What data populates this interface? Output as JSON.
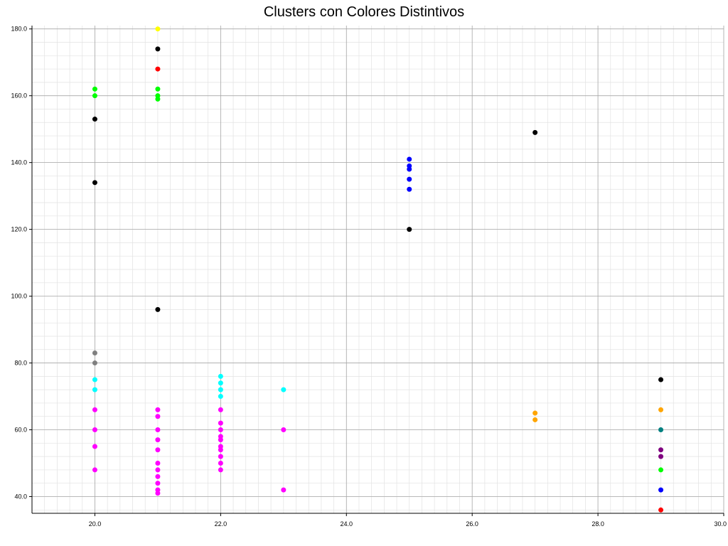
{
  "chart_data": {
    "type": "scatter",
    "title": "Clusters con Colores Distintivos",
    "xlabel": "",
    "ylabel": "",
    "xlim": [
      19.0,
      30.0
    ],
    "ylim": [
      35.0,
      181.0
    ],
    "x_ticks": [
      20.0,
      22.0,
      24.0,
      26.0,
      28.0,
      30.0
    ],
    "y_ticks": [
      40.0,
      60.0,
      80.0,
      100.0,
      120.0,
      140.0,
      160.0,
      180.0
    ],
    "x_tick_labels": [
      "20.0",
      "22.0",
      "24.0",
      "26.0",
      "28.0",
      "30.0"
    ],
    "y_tick_labels": [
      "40.0",
      "60.0",
      "80.0",
      "100.0",
      "120.0",
      "140.0",
      "160.0",
      "180.0"
    ],
    "grid": true,
    "points": [
      {
        "x": 20,
        "y": 162,
        "color": "#00ff00"
      },
      {
        "x": 20,
        "y": 160,
        "color": "#00ff00"
      },
      {
        "x": 20,
        "y": 153,
        "color": "#000000"
      },
      {
        "x": 20,
        "y": 134,
        "color": "#000000"
      },
      {
        "x": 20,
        "y": 83,
        "color": "#808080"
      },
      {
        "x": 20,
        "y": 80,
        "color": "#808080"
      },
      {
        "x": 20,
        "y": 75,
        "color": "#00ffff"
      },
      {
        "x": 20,
        "y": 72,
        "color": "#00ffff"
      },
      {
        "x": 20,
        "y": 66,
        "color": "#ff00ff"
      },
      {
        "x": 20,
        "y": 60,
        "color": "#ff00ff"
      },
      {
        "x": 20,
        "y": 55,
        "color": "#ff00ff"
      },
      {
        "x": 20,
        "y": 48,
        "color": "#ff00ff"
      },
      {
        "x": 21,
        "y": 180,
        "color": "#ffff00"
      },
      {
        "x": 21,
        "y": 174,
        "color": "#000000"
      },
      {
        "x": 21,
        "y": 168,
        "color": "#ff0000"
      },
      {
        "x": 21,
        "y": 162,
        "color": "#00ff00"
      },
      {
        "x": 21,
        "y": 160,
        "color": "#00ff00"
      },
      {
        "x": 21,
        "y": 159,
        "color": "#00ff00"
      },
      {
        "x": 21,
        "y": 96,
        "color": "#000000"
      },
      {
        "x": 21,
        "y": 66,
        "color": "#ff00ff"
      },
      {
        "x": 21,
        "y": 64,
        "color": "#ff00ff"
      },
      {
        "x": 21,
        "y": 60,
        "color": "#ff00ff"
      },
      {
        "x": 21,
        "y": 57,
        "color": "#ff00ff"
      },
      {
        "x": 21,
        "y": 54,
        "color": "#ff00ff"
      },
      {
        "x": 21,
        "y": 50,
        "color": "#ff00ff"
      },
      {
        "x": 21,
        "y": 48,
        "color": "#ff00ff"
      },
      {
        "x": 21,
        "y": 46,
        "color": "#ff00ff"
      },
      {
        "x": 21,
        "y": 44,
        "color": "#ff00ff"
      },
      {
        "x": 21,
        "y": 42,
        "color": "#ff00ff"
      },
      {
        "x": 21,
        "y": 41,
        "color": "#ff00ff"
      },
      {
        "x": 22,
        "y": 76,
        "color": "#00ffff"
      },
      {
        "x": 22,
        "y": 74,
        "color": "#00ffff"
      },
      {
        "x": 22,
        "y": 72,
        "color": "#00ffff"
      },
      {
        "x": 22,
        "y": 70,
        "color": "#00ffff"
      },
      {
        "x": 22,
        "y": 66,
        "color": "#ff00ff"
      },
      {
        "x": 22,
        "y": 62,
        "color": "#ff00ff"
      },
      {
        "x": 22,
        "y": 60,
        "color": "#ff00ff"
      },
      {
        "x": 22,
        "y": 58,
        "color": "#ff00ff"
      },
      {
        "x": 22,
        "y": 57,
        "color": "#ff00ff"
      },
      {
        "x": 22,
        "y": 55,
        "color": "#ff00ff"
      },
      {
        "x": 22,
        "y": 54,
        "color": "#ff00ff"
      },
      {
        "x": 22,
        "y": 52,
        "color": "#ff00ff"
      },
      {
        "x": 22,
        "y": 50,
        "color": "#ff00ff"
      },
      {
        "x": 22,
        "y": 48,
        "color": "#ff00ff"
      },
      {
        "x": 23,
        "y": 72,
        "color": "#00ffff"
      },
      {
        "x": 23,
        "y": 60,
        "color": "#ff00ff"
      },
      {
        "x": 23,
        "y": 42,
        "color": "#ff00ff"
      },
      {
        "x": 25,
        "y": 141,
        "color": "#0000ff"
      },
      {
        "x": 25,
        "y": 139,
        "color": "#0000ff"
      },
      {
        "x": 25,
        "y": 138,
        "color": "#0000ff"
      },
      {
        "x": 25,
        "y": 135,
        "color": "#0000ff"
      },
      {
        "x": 25,
        "y": 132,
        "color": "#0000ff"
      },
      {
        "x": 25,
        "y": 120,
        "color": "#000000"
      },
      {
        "x": 27,
        "y": 149,
        "color": "#000000"
      },
      {
        "x": 27,
        "y": 65,
        "color": "#ffa500"
      },
      {
        "x": 27,
        "y": 63,
        "color": "#ffa500"
      },
      {
        "x": 29,
        "y": 75,
        "color": "#000000"
      },
      {
        "x": 29,
        "y": 66,
        "color": "#ffa500"
      },
      {
        "x": 29,
        "y": 60,
        "color": "#008080"
      },
      {
        "x": 29,
        "y": 54,
        "color": "#800080"
      },
      {
        "x": 29,
        "y": 52,
        "color": "#800080"
      },
      {
        "x": 29,
        "y": 48,
        "color": "#00ff00"
      },
      {
        "x": 29,
        "y": 42,
        "color": "#0000ff"
      },
      {
        "x": 29,
        "y": 36,
        "color": "#ff0000"
      }
    ]
  }
}
